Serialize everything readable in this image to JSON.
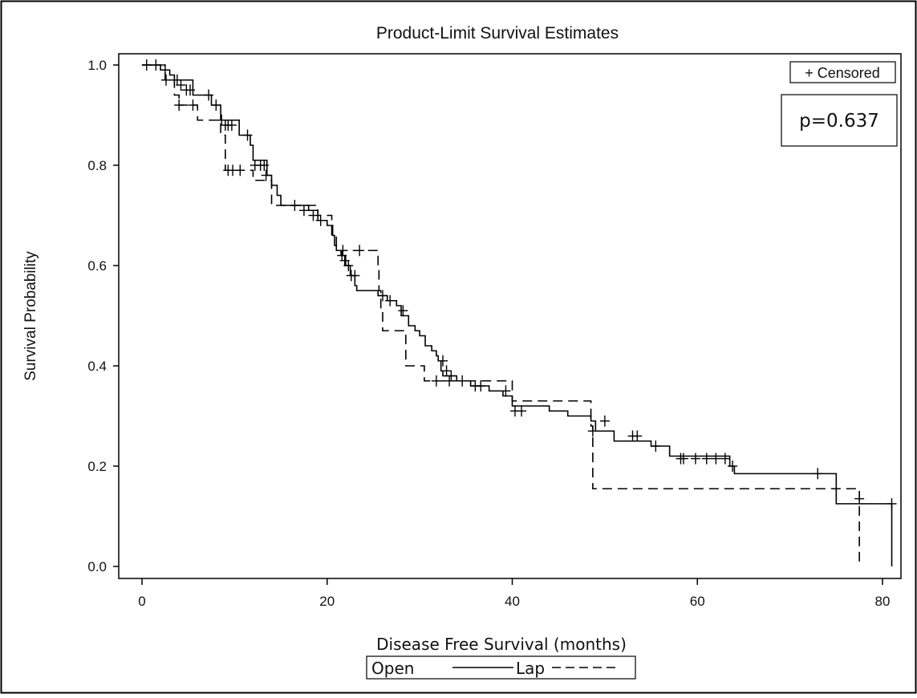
{
  "chart_data": {
    "type": "line",
    "title": "Product-Limit Survival Estimates",
    "xlabel": "Disease Free Survival (months)",
    "ylabel": "Survival Probability",
    "xlim": [
      0,
      81
    ],
    "ylim": [
      0,
      1
    ],
    "xticks": [
      0,
      20,
      40,
      60,
      80
    ],
    "yticks": [
      0.0,
      0.2,
      0.4,
      0.6,
      0.8,
      1.0
    ],
    "xtick_labels": [
      "0",
      "20",
      "40",
      "60",
      "80"
    ],
    "ytick_labels": [
      "0.0",
      "0.2",
      "0.4",
      "0.6",
      "0.8",
      "1.0"
    ],
    "grid": false,
    "censor_legend": "+ Censored",
    "annotation": "p=0.637",
    "legend": {
      "placement": "bottom-center",
      "items": [
        {
          "label": "Open",
          "style": "solid"
        },
        {
          "label": "Lap",
          "style": "dashed"
        }
      ]
    },
    "series": [
      {
        "name": "Open",
        "style": "solid",
        "steps": [
          [
            0,
            1.0
          ],
          [
            2.0,
            0.99
          ],
          [
            3.0,
            0.98
          ],
          [
            3.5,
            0.97
          ],
          [
            5.5,
            0.94
          ],
          [
            7.5,
            0.92
          ],
          [
            8.5,
            0.89
          ],
          [
            10.5,
            0.86
          ],
          [
            11.7,
            0.84
          ],
          [
            12.0,
            0.81
          ],
          [
            13.5,
            0.78
          ],
          [
            14.0,
            0.76
          ],
          [
            14.6,
            0.74
          ],
          [
            15.0,
            0.72
          ],
          [
            18.0,
            0.71
          ],
          [
            19.0,
            0.69
          ],
          [
            20.0,
            0.68
          ],
          [
            20.6,
            0.66
          ],
          [
            20.8,
            0.64
          ],
          [
            21.0,
            0.63
          ],
          [
            21.5,
            0.62
          ],
          [
            22.0,
            0.6
          ],
          [
            22.5,
            0.58
          ],
          [
            23.0,
            0.56
          ],
          [
            23.2,
            0.55
          ],
          [
            25.5,
            0.54
          ],
          [
            26.5,
            0.53
          ],
          [
            27.5,
            0.52
          ],
          [
            28.0,
            0.5
          ],
          [
            28.8,
            0.48
          ],
          [
            29.5,
            0.47
          ],
          [
            30.0,
            0.46
          ],
          [
            30.6,
            0.44
          ],
          [
            31.3,
            0.43
          ],
          [
            31.8,
            0.42
          ],
          [
            32.0,
            0.41
          ],
          [
            32.3,
            0.39
          ],
          [
            32.5,
            0.38
          ],
          [
            34.0,
            0.37
          ],
          [
            35.5,
            0.36
          ],
          [
            37.5,
            0.35
          ],
          [
            39.0,
            0.34
          ],
          [
            40.0,
            0.32
          ],
          [
            44.0,
            0.31
          ],
          [
            46.0,
            0.3
          ],
          [
            48.5,
            0.29
          ],
          [
            49.0,
            0.27
          ],
          [
            51.0,
            0.25
          ],
          [
            55.0,
            0.24
          ],
          [
            57.0,
            0.22
          ],
          [
            63.5,
            0.2
          ],
          [
            64.0,
            0.185
          ],
          [
            75.0,
            0.125
          ],
          [
            81.0,
            0.0
          ]
        ],
        "end_x": 81.0,
        "censored": [
          [
            0.5,
            1.0
          ],
          [
            1.5,
            1.0
          ],
          [
            2.5,
            0.99
          ],
          [
            3.5,
            0.97
          ],
          [
            3.8,
            0.97
          ],
          [
            4.2,
            0.96
          ],
          [
            4.8,
            0.95
          ],
          [
            5.2,
            0.95
          ],
          [
            7.2,
            0.94
          ],
          [
            8.0,
            0.92
          ],
          [
            8.6,
            0.89
          ],
          [
            9.0,
            0.88
          ],
          [
            9.3,
            0.88
          ],
          [
            9.7,
            0.88
          ],
          [
            11.4,
            0.86
          ],
          [
            12.2,
            0.8
          ],
          [
            12.8,
            0.8
          ],
          [
            13.2,
            0.8
          ],
          [
            13.4,
            0.78
          ],
          [
            16.5,
            0.72
          ],
          [
            17.5,
            0.71
          ],
          [
            18.5,
            0.7
          ],
          [
            19.3,
            0.69
          ],
          [
            21.6,
            0.62
          ],
          [
            21.9,
            0.61
          ],
          [
            22.3,
            0.6
          ],
          [
            22.6,
            0.58
          ],
          [
            23.0,
            0.58
          ],
          [
            26.0,
            0.54
          ],
          [
            26.8,
            0.53
          ],
          [
            28.2,
            0.51
          ],
          [
            32.5,
            0.41
          ],
          [
            32.9,
            0.39
          ],
          [
            33.4,
            0.38
          ],
          [
            34.6,
            0.37
          ],
          [
            36.0,
            0.36
          ],
          [
            36.6,
            0.36
          ],
          [
            39.3,
            0.35
          ],
          [
            50.0,
            0.29
          ],
          [
            53.0,
            0.26
          ],
          [
            53.5,
            0.26
          ],
          [
            55.5,
            0.24
          ],
          [
            58.2,
            0.215
          ],
          [
            58.5,
            0.215
          ],
          [
            59.8,
            0.215
          ],
          [
            61.0,
            0.215
          ],
          [
            62.0,
            0.215
          ],
          [
            63.0,
            0.215
          ],
          [
            63.8,
            0.2
          ],
          [
            73.0,
            0.185
          ],
          [
            81.0,
            0.125
          ]
        ]
      },
      {
        "name": "Lap",
        "style": "dashed",
        "steps": [
          [
            0,
            1.0
          ],
          [
            2.5,
            0.97
          ],
          [
            3.5,
            0.94
          ],
          [
            4.0,
            0.92
          ],
          [
            6.0,
            0.89
          ],
          [
            8.5,
            0.86
          ],
          [
            9.0,
            0.79
          ],
          [
            12.0,
            0.77
          ],
          [
            14.0,
            0.72
          ],
          [
            19.0,
            0.7
          ],
          [
            20.5,
            0.66
          ],
          [
            21.0,
            0.63
          ],
          [
            25.5,
            0.59
          ],
          [
            25.6,
            0.55
          ],
          [
            25.8,
            0.51
          ],
          [
            26.0,
            0.47
          ],
          [
            28.5,
            0.4
          ],
          [
            30.5,
            0.37
          ],
          [
            40.0,
            0.33
          ],
          [
            48.5,
            0.28
          ],
          [
            48.7,
            0.155
          ],
          [
            77.5,
            0.0
          ]
        ],
        "end_x": 77.5,
        "censored": [
          [
            2.6,
            0.97
          ],
          [
            4.0,
            0.92
          ],
          [
            5.5,
            0.92
          ],
          [
            9.3,
            0.79
          ],
          [
            9.8,
            0.79
          ],
          [
            10.6,
            0.79
          ],
          [
            21.7,
            0.63
          ],
          [
            23.5,
            0.63
          ],
          [
            31.8,
            0.37
          ],
          [
            33.2,
            0.37
          ],
          [
            40.3,
            0.31
          ],
          [
            41.0,
            0.31
          ],
          [
            48.7,
            0.27
          ],
          [
            77.5,
            0.135
          ]
        ]
      }
    ]
  }
}
